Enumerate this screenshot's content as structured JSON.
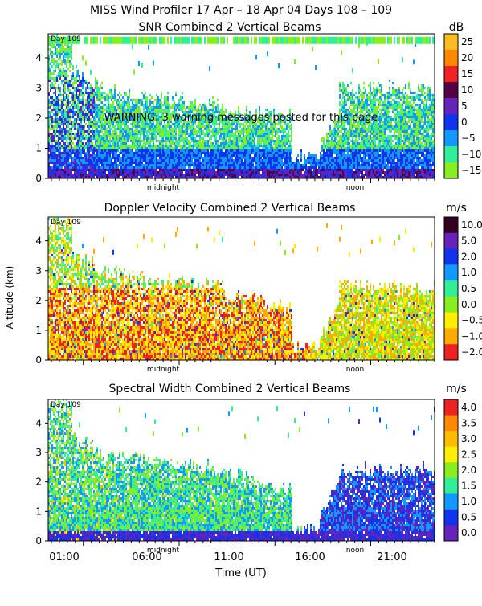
{
  "figure": {
    "title": "MISS Wind Profiler  17 Apr – 18 Apr 04 Days 108 – 109",
    "ylabel": "Altitude (km)",
    "xlabel": "Time (UT)",
    "xticks": [
      "01:00",
      "06:00",
      "11:00",
      "16:00",
      "21:00"
    ],
    "midnight_label": "midnight",
    "noon_label": "noon",
    "day_label": "Day 109"
  },
  "colors": {
    "white": "#ffffff"
  },
  "chart_data": [
    {
      "type": "heatmap",
      "title": "SNR Combined 2 Vertical Beams",
      "unit": "dB",
      "ylim": [
        0,
        4.8
      ],
      "yticks": [
        "0",
        "1",
        "2",
        "3",
        "4"
      ],
      "colorbar": [
        {
          "label": "25",
          "color": "#ffbb22"
        },
        {
          "label": "20",
          "color": "#ff8800"
        },
        {
          "label": "15",
          "color": "#ee2222"
        },
        {
          "label": "10",
          "color": "#550044"
        },
        {
          "label": "5",
          "color": "#6622bb"
        },
        {
          "label": "0",
          "color": "#1133ee"
        },
        {
          "label": "−5",
          "color": "#1199ff"
        },
        {
          "label": "−10",
          "color": "#33ee99"
        },
        {
          "label": "−15",
          "color": "#88ee22"
        }
      ],
      "warning": "WARNING: 3 warning messages posted for this page"
    },
    {
      "type": "heatmap",
      "title": "Doppler Velocity Combined 2 Vertical Beams",
      "unit": "m/s",
      "ylim": [
        0,
        4.8
      ],
      "yticks": [
        "0",
        "1",
        "2",
        "3",
        "4"
      ],
      "colorbar": [
        {
          "label": "10.0",
          "color": "#330022"
        },
        {
          "label": "5.0",
          "color": "#6622bb"
        },
        {
          "label": "2.0",
          "color": "#1133ee"
        },
        {
          "label": "1.0",
          "color": "#1199ff"
        },
        {
          "label": "0.5",
          "color": "#33ee99"
        },
        {
          "label": "0.0",
          "color": "#88ee22"
        },
        {
          "label": "−0.5",
          "color": "#ffee00"
        },
        {
          "label": "−1.0",
          "color": "#ffaa00"
        },
        {
          "label": "−2.0",
          "color": "#ee2222"
        }
      ]
    },
    {
      "type": "heatmap",
      "title": "Spectral Width Combined 2 Vertical Beams",
      "unit": "m/s",
      "ylim": [
        0,
        4.8
      ],
      "yticks": [
        "0",
        "1",
        "2",
        "3",
        "4"
      ],
      "colorbar": [
        {
          "label": "4.0",
          "color": "#ee2222"
        },
        {
          "label": "3.5",
          "color": "#ff8800"
        },
        {
          "label": "3.0",
          "color": "#ffbb00"
        },
        {
          "label": "2.5",
          "color": "#ffee00"
        },
        {
          "label": "2.0",
          "color": "#88ee22"
        },
        {
          "label": "1.5",
          "color": "#33ee99"
        },
        {
          "label": "1.0",
          "color": "#1199ff"
        },
        {
          "label": "0.5",
          "color": "#1133ee"
        },
        {
          "label": "0.0",
          "color": "#6622bb"
        }
      ]
    }
  ]
}
